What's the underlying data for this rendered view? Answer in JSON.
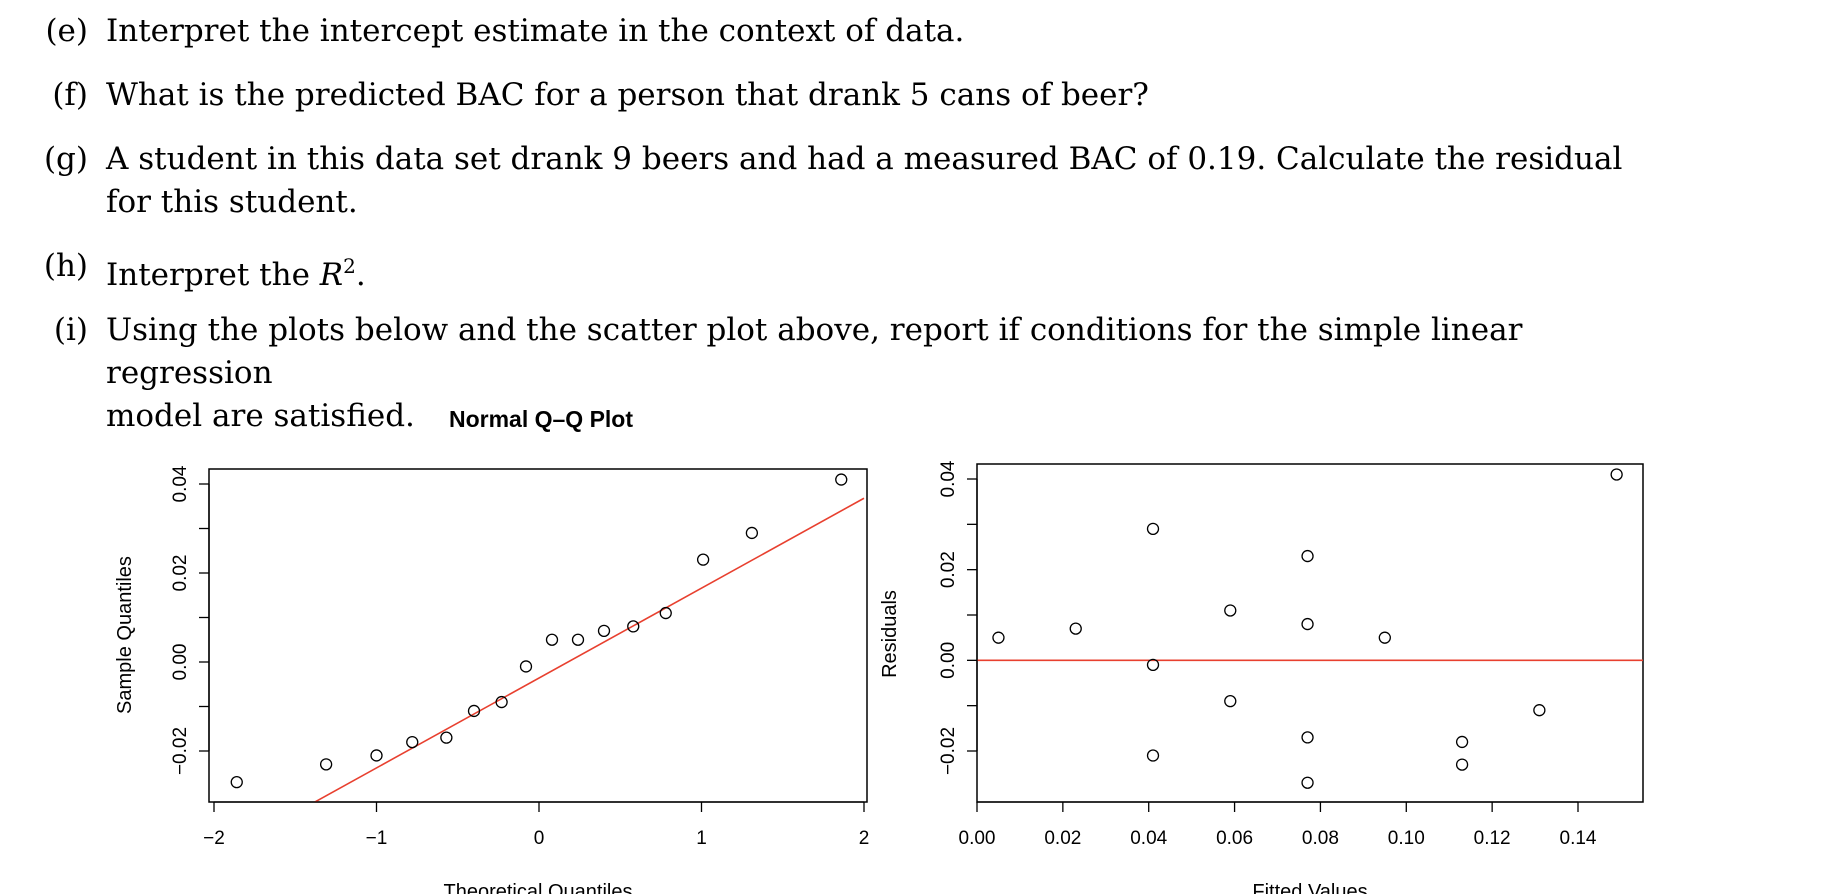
{
  "questions": [
    {
      "label": "(e)",
      "text": "Interpret the intercept estimate in the context of data."
    },
    {
      "label": "(f)",
      "text": "What is the predicted BAC for a person that drank 5 cans of beer?"
    },
    {
      "label": "(g)",
      "line1": "A student in this data set drank 9 beers and had a measured BAC of 0.19. Calculate the residual",
      "line2": "for this student."
    },
    {
      "label": "(h)",
      "text_prefix": "Interpret the ",
      "r": "R",
      "sup": "2",
      "text_suffix": "."
    },
    {
      "label": "(i)",
      "line1": "Using the plots below and the scatter plot above, report if conditions for the simple linear regression",
      "line2": "model are satisfied."
    }
  ],
  "chart_data": [
    {
      "type": "scatter",
      "title": "Normal Q–Q Plot",
      "xlabel": "Theoretical Quantiles",
      "ylabel": "Sample Quantiles",
      "xlim": [
        -2,
        2
      ],
      "ylim": [
        -0.03,
        0.042
      ],
      "xticks": [
        -2,
        -1,
        0,
        1,
        2
      ],
      "xtick_labels": [
        "−2",
        "−1",
        "0",
        "1",
        "2"
      ],
      "yticks": [
        -0.02,
        0.0,
        0.02,
        0.04
      ],
      "ytick_labels": [
        "−0.02",
        "0.00",
        "0.02",
        "0.04"
      ],
      "minor_yticks": [
        -0.01,
        0.01,
        0.03
      ],
      "points": [
        {
          "x": -1.86,
          "y": -0.027
        },
        {
          "x": -1.31,
          "y": -0.023
        },
        {
          "x": -1.0,
          "y": -0.021
        },
        {
          "x": -0.78,
          "y": -0.018
        },
        {
          "x": -0.57,
          "y": -0.017
        },
        {
          "x": -0.4,
          "y": -0.011
        },
        {
          "x": -0.23,
          "y": -0.009
        },
        {
          "x": -0.08,
          "y": -0.001
        },
        {
          "x": 0.08,
          "y": 0.005
        },
        {
          "x": 0.24,
          "y": 0.005
        },
        {
          "x": 0.4,
          "y": 0.007
        },
        {
          "x": 0.58,
          "y": 0.008
        },
        {
          "x": 0.78,
          "y": 0.011
        },
        {
          "x": 1.01,
          "y": 0.023
        },
        {
          "x": 1.31,
          "y": 0.029
        },
        {
          "x": 1.86,
          "y": 0.041
        }
      ],
      "reference_line": {
        "slope": 0.0202,
        "intercept": -0.0036,
        "color": "#e8402f"
      }
    },
    {
      "type": "scatter",
      "title": "",
      "xlabel": "Fitted Values",
      "ylabel": "Residuals",
      "xlim": [
        0.0,
        0.155
      ],
      "ylim": [
        -0.03,
        0.044
      ],
      "xticks": [
        0.0,
        0.02,
        0.04,
        0.06,
        0.08,
        0.1,
        0.12,
        0.14
      ],
      "xtick_labels": [
        "0.00",
        "0.02",
        "0.04",
        "0.06",
        "0.08",
        "0.10",
        "0.12",
        "0.14"
      ],
      "yticks": [
        -0.02,
        0.0,
        0.02,
        0.04
      ],
      "ytick_labels": [
        "−0.02",
        "0.00",
        "0.02",
        "0.04"
      ],
      "minor_yticks": [
        -0.01,
        0.01,
        0.03
      ],
      "points": [
        {
          "x": 0.005,
          "y": 0.005
        },
        {
          "x": 0.023,
          "y": 0.007
        },
        {
          "x": 0.041,
          "y": 0.029
        },
        {
          "x": 0.041,
          "y": -0.001
        },
        {
          "x": 0.041,
          "y": -0.021
        },
        {
          "x": 0.059,
          "y": 0.011
        },
        {
          "x": 0.059,
          "y": -0.009
        },
        {
          "x": 0.077,
          "y": 0.023
        },
        {
          "x": 0.077,
          "y": 0.008
        },
        {
          "x": 0.077,
          "y": -0.017
        },
        {
          "x": 0.077,
          "y": -0.027
        },
        {
          "x": 0.095,
          "y": 0.005
        },
        {
          "x": 0.113,
          "y": -0.018
        },
        {
          "x": 0.113,
          "y": -0.023
        },
        {
          "x": 0.131,
          "y": -0.011
        },
        {
          "x": 0.149,
          "y": 0.041
        }
      ],
      "reference_hline": {
        "y": 0.0,
        "color": "#e8402f"
      }
    }
  ]
}
